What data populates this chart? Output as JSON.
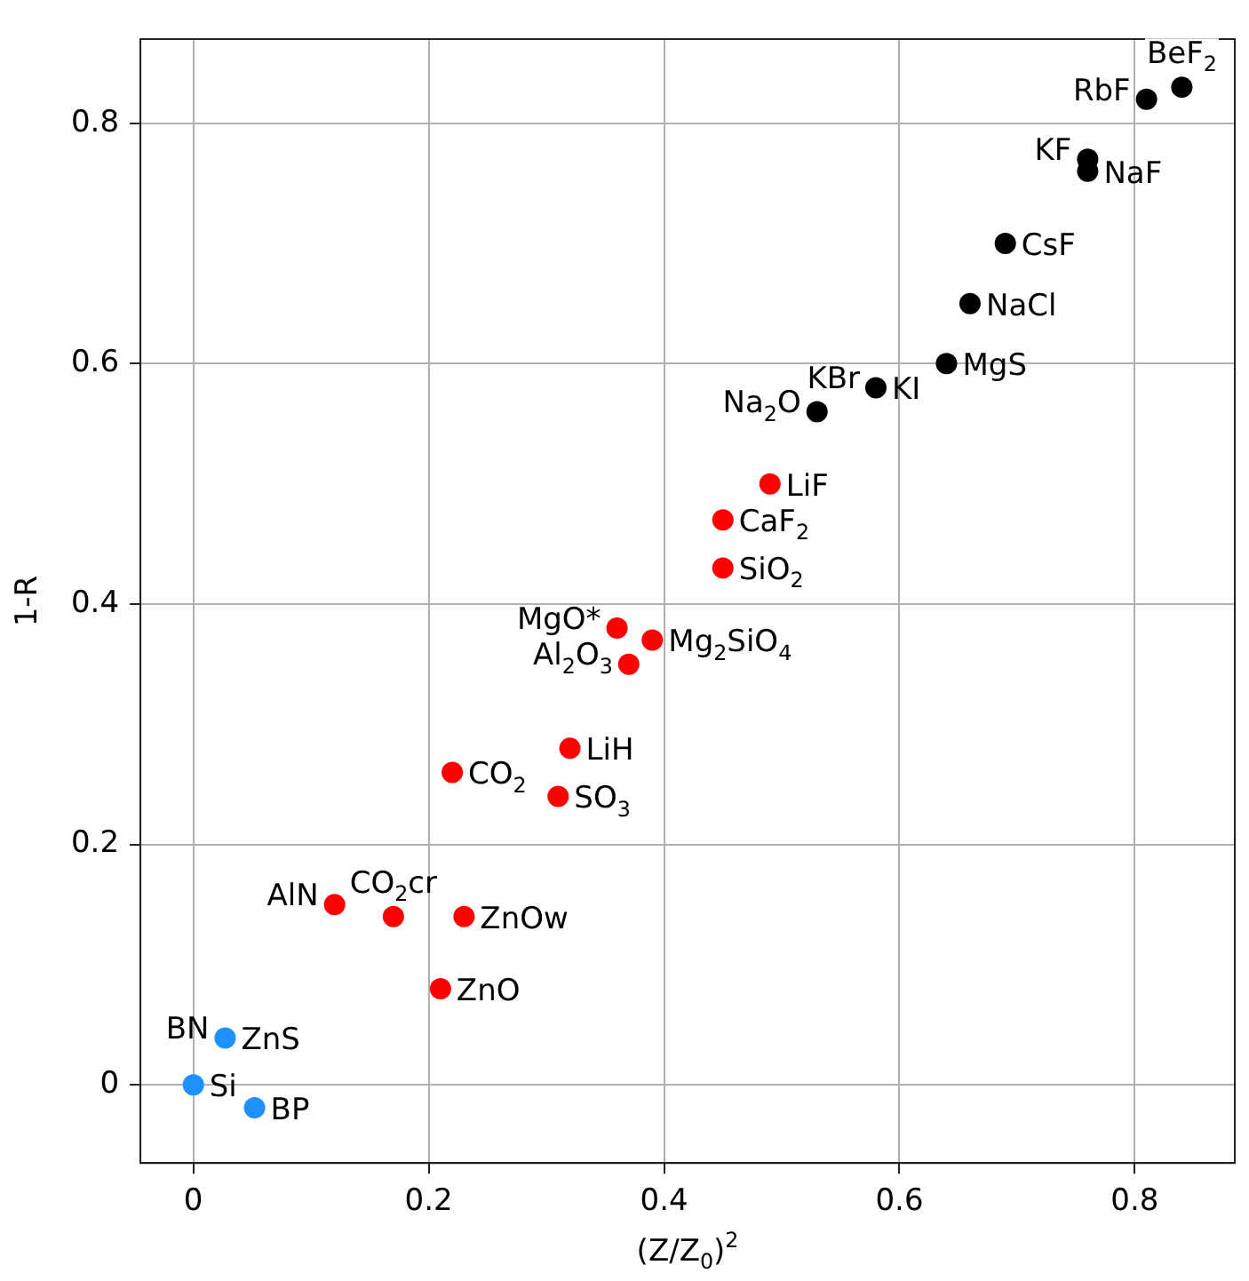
{
  "chart_data": {
    "type": "scatter",
    "xlabel": "(Z/Z$_{0}$)$^{2}$",
    "ylabel": "1-R",
    "xlim": [
      -0.045,
      0.885
    ],
    "ylim": [
      -0.065,
      0.87
    ],
    "xticks": [
      0,
      0.2,
      0.4,
      0.6,
      0.8
    ],
    "yticks": [
      0,
      0.2,
      0.4,
      0.6,
      0.8
    ],
    "grid": true,
    "legend": false,
    "marker": "circle",
    "series": [
      {
        "color": "#000000",
        "x": [
          0.81,
          0.84,
          0.76,
          0.76,
          0.69,
          0.66,
          0.64,
          0.58,
          0.53
        ],
        "values": [
          0.82,
          0.83,
          0.77,
          0.76,
          0.7,
          0.65,
          0.6,
          0.58,
          0.56
        ]
      },
      {
        "color": "#ff0000",
        "x": [
          0.49,
          0.45,
          0.45,
          0.36,
          0.39,
          0.37,
          0.32,
          0.31,
          0.22,
          0.12,
          0.17,
          0.23,
          0.21
        ],
        "values": [
          0.5,
          0.47,
          0.43,
          0.38,
          0.37,
          0.35,
          0.28,
          0.24,
          0.26,
          0.15,
          0.14,
          0.14,
          0.08
        ]
      },
      {
        "color": "#1e90ff",
        "x": [
          0.027,
          0,
          0.052
        ],
        "values": [
          0.039,
          0,
          -0.019
        ]
      }
    ],
    "annotations": [
      {
        "text": "RbF",
        "x": 0.81,
        "y": 0.82
      },
      {
        "text": "BeF$_{2}$",
        "x": 0.84,
        "y": 0.83
      },
      {
        "text": "NaF",
        "x": 0.76,
        "y": 0.76
      },
      {
        "text": "KF",
        "x": 0.76,
        "y": 0.77
      },
      {
        "text": "CsF",
        "x": 0.69,
        "y": 0.7
      },
      {
        "text": "NaCl",
        "x": 0.66,
        "y": 0.65
      },
      {
        "text": "MgS",
        "x": 0.64,
        "y": 0.6
      },
      {
        "text": "KI",
        "x": 0.58,
        "y": 0.58
      },
      {
        "text": "KBr",
        "x": 0.58,
        "y": 0.58
      },
      {
        "text": "Na$_{2}$O",
        "x": 0.53,
        "y": 0.56
      },
      {
        "text": "LiF",
        "x": 0.49,
        "y": 0.5
      },
      {
        "text": "CaF$_{2}$",
        "x": 0.45,
        "y": 0.47
      },
      {
        "text": "SiO$_{2}$",
        "x": 0.45,
        "y": 0.43
      },
      {
        "text": "MgO*",
        "x": 0.36,
        "y": 0.38
      },
      {
        "text": "Mg$_{2}$SiO$_{4}$",
        "x": 0.39,
        "y": 0.37
      },
      {
        "text": "Al$_{2}$O$_{3}$",
        "x": 0.37,
        "y": 0.35
      },
      {
        "text": "LiH",
        "x": 0.32,
        "y": 0.28
      },
      {
        "text": "SO$_{3}$",
        "x": 0.31,
        "y": 0.24
      },
      {
        "text": "CO$_{2}$",
        "x": 0.22,
        "y": 0.26
      },
      {
        "text": "AlN",
        "x": 0.12,
        "y": 0.15
      },
      {
        "text": "CO$_{2}$cr",
        "x": 0.17,
        "y": 0.14
      },
      {
        "text": "ZnOw",
        "x": 0.23,
        "y": 0.14
      },
      {
        "text": "ZnO",
        "x": 0.21,
        "y": 0.08
      },
      {
        "text": "ZnS",
        "x": 0.027,
        "y": 0.039
      },
      {
        "text": "BN",
        "x": 0.027,
        "y": 0.039
      },
      {
        "text": "Si",
        "x": 0,
        "y": 0
      },
      {
        "text": "BP",
        "x": 0.052,
        "y": -0.019
      }
    ]
  }
}
